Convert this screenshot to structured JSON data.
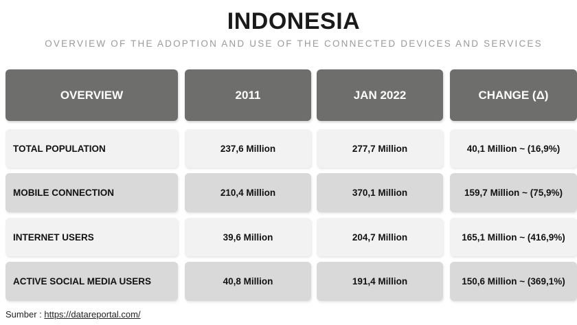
{
  "title": "INDONESIA",
  "subtitle": "OVERVIEW OF THE ADOPTION AND USE OF THE CONNECTED DEVICES AND SERVICES",
  "table": {
    "headers": [
      "OVERVIEW",
      "2011",
      "JAN 2022",
      "CHANGE (Δ)"
    ],
    "rows": [
      [
        "TOTAL POPULATION",
        "237,6 Million",
        "277,7 Million",
        "40,1 Million ~ (16,9%)"
      ],
      [
        "MOBILE CONNECTION",
        "210,4 Million",
        "370,1 Million",
        "159,7 Million ~ (75,9%)"
      ],
      [
        "INTERNET USERS",
        "39,6 Million",
        "204,7 Million",
        "165,1 Million ~ (416,9%)"
      ],
      [
        "ACTIVE SOCIAL MEDIA USERS",
        "40,8 Million",
        "191,4 Million",
        "150,6 Million ~ (369,1%)"
      ]
    ]
  },
  "source": {
    "label": "Sumber :",
    "link_text": "https://datareportal.com/"
  },
  "colors": {
    "header_bg": "#6e6f6c",
    "row_light": "#f2f2f2",
    "row_dark": "#d9d9d9"
  }
}
